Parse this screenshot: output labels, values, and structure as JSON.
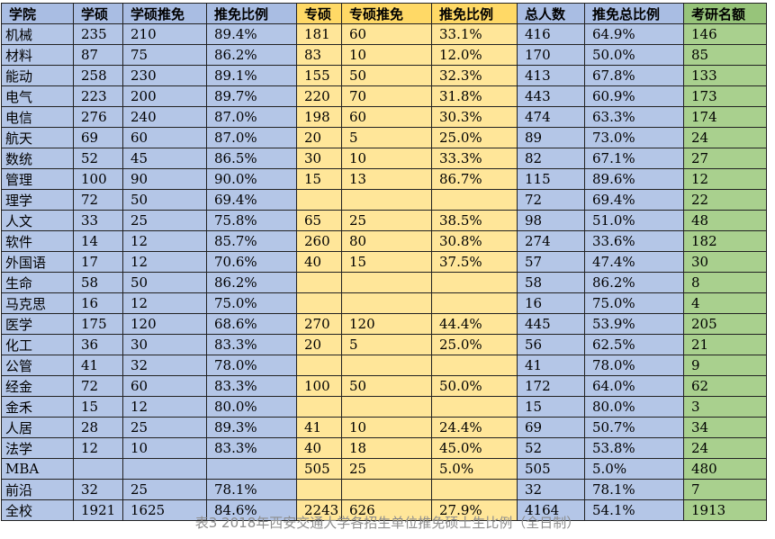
{
  "table": {
    "header": [
      "学院",
      "学硕",
      "学硕推免",
      "推免比例",
      "专硕",
      "专硕推免",
      "推免比例",
      "总人数",
      "推免总比例",
      "考研名额"
    ],
    "rows": [
      [
        "机械",
        "235",
        "210",
        "89.4%",
        "181",
        "60",
        "33.1%",
        "416",
        "64.9%",
        "146"
      ],
      [
        "材料",
        "87",
        "75",
        "86.2%",
        "83",
        "10",
        "12.0%",
        "170",
        "50.0%",
        "85"
      ],
      [
        "能动",
        "258",
        "230",
        "89.1%",
        "155",
        "50",
        "32.3%",
        "413",
        "67.8%",
        "133"
      ],
      [
        "电气",
        "223",
        "200",
        "89.7%",
        "220",
        "70",
        "31.8%",
        "443",
        "60.9%",
        "173"
      ],
      [
        "电信",
        "276",
        "240",
        "87.0%",
        "198",
        "60",
        "30.3%",
        "474",
        "63.3%",
        "174"
      ],
      [
        "航天",
        "69",
        "60",
        "87.0%",
        "20",
        "5",
        "25.0%",
        "89",
        "73.0%",
        "24"
      ],
      [
        "数统",
        "52",
        "45",
        "86.5%",
        "30",
        "10",
        "33.3%",
        "82",
        "67.1%",
        "27"
      ],
      [
        "管理",
        "100",
        "90",
        "90.0%",
        "15",
        "13",
        "86.7%",
        "115",
        "89.6%",
        "12"
      ],
      [
        "理学",
        "72",
        "50",
        "69.4%",
        null,
        null,
        null,
        "72",
        "69.4%",
        "22"
      ],
      [
        "人文",
        "33",
        "25",
        "75.8%",
        "65",
        "25",
        "38.5%",
        "98",
        "51.0%",
        "48"
      ],
      [
        "软件",
        "14",
        "12",
        "85.7%",
        "260",
        "80",
        "30.8%",
        "274",
        "33.6%",
        "182"
      ],
      [
        "外国语",
        "17",
        "12",
        "70.6%",
        "40",
        "15",
        "37.5%",
        "57",
        "47.4%",
        "30"
      ],
      [
        "生命",
        "58",
        "50",
        "86.2%",
        null,
        null,
        null,
        "58",
        "86.2%",
        "8"
      ],
      [
        "马克思",
        "16",
        "12",
        "75.0%",
        null,
        null,
        null,
        "16",
        "75.0%",
        "4"
      ],
      [
        "医学",
        "175",
        "120",
        "68.6%",
        "270",
        "120",
        "44.4%",
        "445",
        "53.9%",
        "205"
      ],
      [
        "化工",
        "36",
        "30",
        "83.3%",
        "20",
        "5",
        "25.0%",
        "56",
        "62.5%",
        "21"
      ],
      [
        "公管",
        "41",
        "32",
        "78.0%",
        null,
        null,
        null,
        "41",
        "78.0%",
        "9"
      ],
      [
        "经金",
        "72",
        "60",
        "83.3%",
        "100",
        "50",
        "50.0%",
        "172",
        "64.0%",
        "62"
      ],
      [
        "金禾",
        "15",
        "12",
        "80.0%",
        null,
        null,
        null,
        "15",
        "80.0%",
        "3"
      ],
      [
        "人居",
        "28",
        "25",
        "89.3%",
        "41",
        "10",
        "24.4%",
        "69",
        "50.7%",
        "34"
      ],
      [
        "法学",
        "12",
        "10",
        "83.3%",
        "40",
        "18",
        "45.0%",
        "52",
        "53.8%",
        "24"
      ],
      [
        "MBA",
        null,
        null,
        null,
        "505",
        "25",
        "5.0%",
        "505",
        "5.0%",
        "480"
      ],
      [
        "前沿",
        "32",
        "25",
        "78.1%",
        null,
        null,
        null,
        "32",
        "78.1%",
        "7"
      ],
      [
        "全校",
        "1921",
        "1625",
        "84.6%",
        "2243",
        "626",
        "27.9%",
        "4164",
        "54.1%",
        "1913"
      ]
    ],
    "caption": "表3 2018年西安交通大学各招生单位推免硕士生比例（全日制）"
  }
}
